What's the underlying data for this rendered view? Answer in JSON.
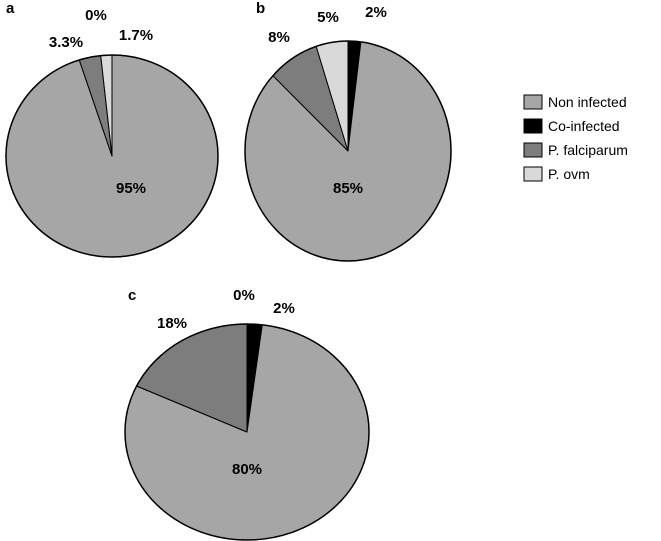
{
  "legend": [
    {
      "label": "Non infected",
      "color": "#a6a6a6"
    },
    {
      "label": "Co-infected",
      "color": "#000000"
    },
    {
      "label": "P. falciparum",
      "color": "#7d7d7d"
    },
    {
      "label": "P. ovm",
      "color": "#d9d9d9"
    }
  ],
  "chart_data": [
    {
      "type": "pie",
      "panel": "a",
      "categories": [
        "Non infected",
        "Co-infected",
        "P. falciparum",
        "P. ovm"
      ],
      "values": [
        95,
        0,
        3.3,
        1.7
      ],
      "labels": [
        "95%",
        "0%",
        "3.3%",
        "1.7%"
      ]
    },
    {
      "type": "pie",
      "panel": "b",
      "categories": [
        "Non infected",
        "Co-infected",
        "P. falciparum",
        "P. ovm"
      ],
      "values": [
        85,
        2,
        8,
        5
      ],
      "labels": [
        "85%",
        "2%",
        "8%",
        "5%"
      ]
    },
    {
      "type": "pie",
      "panel": "c",
      "categories": [
        "Non infected",
        "Co-infected",
        "P. falciparum",
        "P. ovm"
      ],
      "values": [
        80,
        2,
        18,
        0
      ],
      "labels": [
        "80%",
        "2%",
        "18%",
        "0%"
      ]
    }
  ]
}
